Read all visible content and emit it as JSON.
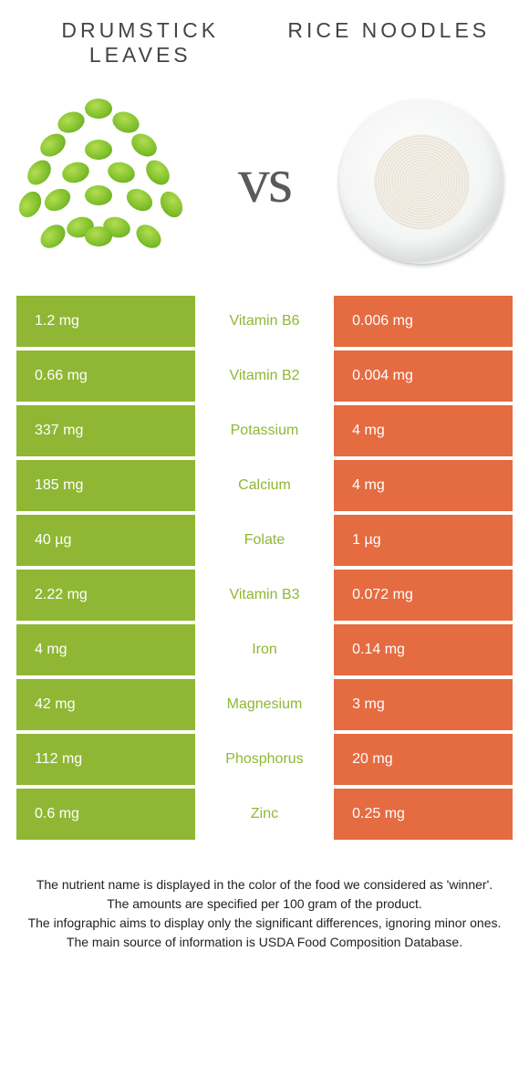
{
  "titles": {
    "left": "DRUMSTICK LEAVES",
    "right": "RICE NOODLES"
  },
  "vs": "vs",
  "colors": {
    "left_cell": "#8fb734",
    "right_cell": "#e56b41",
    "mid_left_text": "#8fb734",
    "mid_right_text": "#e56b41"
  },
  "rows": [
    {
      "left": "1.2 mg",
      "name": "Vitamin B6",
      "right": "0.006 mg",
      "winner": "left"
    },
    {
      "left": "0.66 mg",
      "name": "Vitamin B2",
      "right": "0.004 mg",
      "winner": "left"
    },
    {
      "left": "337 mg",
      "name": "Potassium",
      "right": "4 mg",
      "winner": "left"
    },
    {
      "left": "185 mg",
      "name": "Calcium",
      "right": "4 mg",
      "winner": "left"
    },
    {
      "left": "40 µg",
      "name": "Folate",
      "right": "1 µg",
      "winner": "left"
    },
    {
      "left": "2.22 mg",
      "name": "Vitamin B3",
      "right": "0.072 mg",
      "winner": "left"
    },
    {
      "left": "4 mg",
      "name": "Iron",
      "right": "0.14 mg",
      "winner": "left"
    },
    {
      "left": "42 mg",
      "name": "Magnesium",
      "right": "3 mg",
      "winner": "left"
    },
    {
      "left": "112 mg",
      "name": "Phosphorus",
      "right": "20 mg",
      "winner": "left"
    },
    {
      "left": "0.6 mg",
      "name": "Zinc",
      "right": "0.25 mg",
      "winner": "left"
    }
  ],
  "footer": [
    "The nutrient name is displayed in the color of the food we considered as 'winner'.",
    "The amounts are specified per 100 gram of the product.",
    "The infographic aims to display only the significant differences, ignoring minor ones.",
    "The main source of information is USDA Food Composition Database."
  ]
}
